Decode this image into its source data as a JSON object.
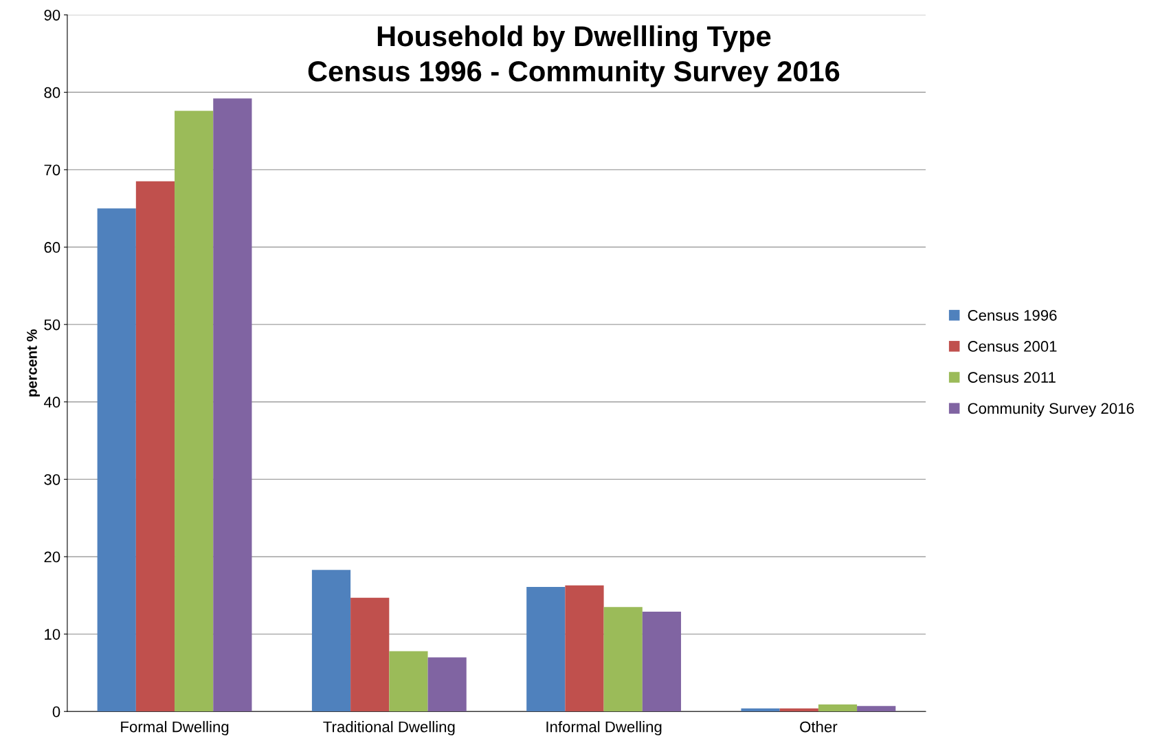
{
  "chart_data": {
    "type": "bar",
    "title": "Household by Dwellling Type\nCensus 1996 - Community Survey 2016",
    "ylabel": "percent %",
    "categories": [
      "Formal Dwelling",
      "Traditional Dwelling",
      "Informal Dwelling",
      "Other"
    ],
    "series": [
      {
        "name": "Census 1996",
        "color": "#4f81bd",
        "values": [
          65.0,
          18.3,
          16.1,
          0.4
        ]
      },
      {
        "name": "Census 2001",
        "color": "#c0504d",
        "values": [
          68.5,
          14.7,
          16.3,
          0.4
        ]
      },
      {
        "name": "Census 2011",
        "color": "#9bbb59",
        "values": [
          77.6,
          7.8,
          13.5,
          0.9
        ]
      },
      {
        "name": "Community Survey 2016",
        "color": "#8064a2",
        "values": [
          79.2,
          7.0,
          12.9,
          0.7
        ]
      }
    ],
    "ylim": [
      0,
      90
    ],
    "yticks": [
      0,
      10,
      20,
      30,
      40,
      50,
      60,
      70,
      80,
      90
    ],
    "grid": "y",
    "legend": "right"
  }
}
